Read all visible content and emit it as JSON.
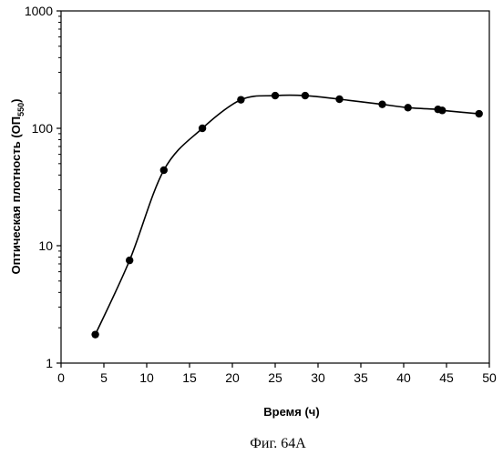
{
  "chart_data": {
    "type": "line",
    "xlabel": "Время (ч)",
    "ylabel_main": "Оптическая плотность (ОП",
    "ylabel_sub": "550",
    "ylabel_end": ")",
    "y_scale": "log",
    "xlim": [
      0,
      50
    ],
    "ylim": [
      1,
      1000
    ],
    "x_ticks": [
      0,
      5,
      10,
      15,
      20,
      25,
      30,
      35,
      40,
      45,
      50
    ],
    "x_tick_labels": [
      "0",
      "5",
      "10",
      "15",
      "20",
      "25",
      "30",
      "35",
      "40",
      "45",
      "50"
    ],
    "y_ticks": [
      1,
      10,
      100,
      1000
    ],
    "y_tick_labels": [
      "1",
      "10",
      "100",
      "1000"
    ],
    "grid": false,
    "series": [
      {
        "marker": "circle",
        "color": "#000000",
        "x": [
          4,
          8,
          12,
          16.5,
          21,
          25,
          28.5,
          32.5,
          37.5,
          40.5,
          44,
          44.5,
          48.8
        ],
        "y": [
          1.75,
          7.5,
          44,
          100,
          175,
          190,
          190,
          177,
          160,
          150,
          145,
          142,
          133
        ]
      }
    ]
  },
  "caption": "Фиг. 64А"
}
